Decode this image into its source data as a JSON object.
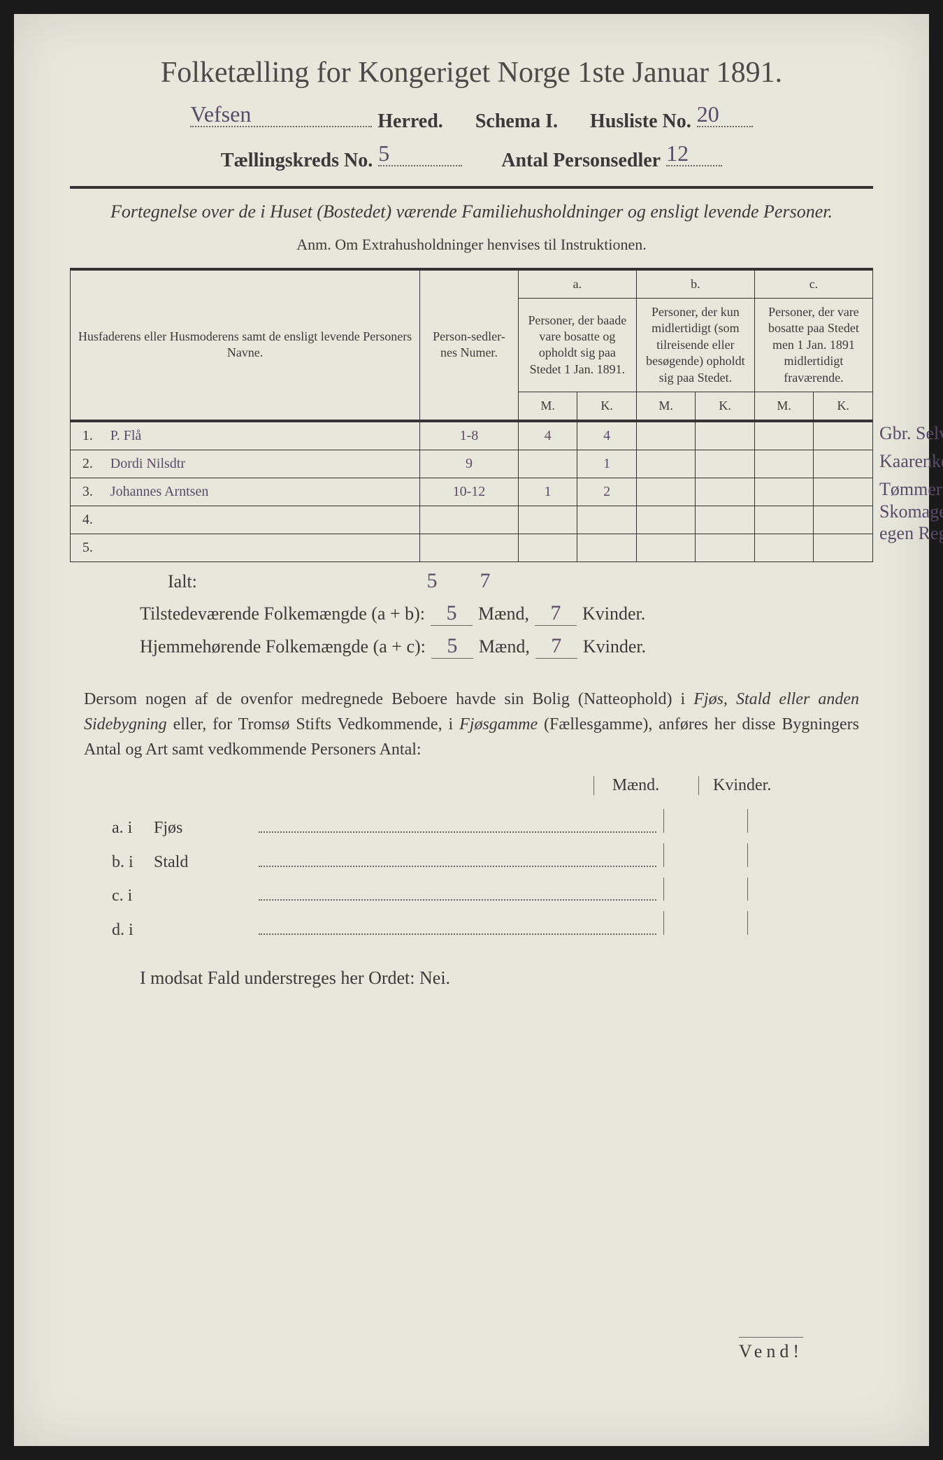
{
  "title": "Folketælling for Kongeriget Norge 1ste Januar 1891.",
  "header": {
    "herred_value": "Vefsen",
    "herred_label": "Herred.",
    "schema_label": "Schema I.",
    "husliste_label": "Husliste No.",
    "husliste_value": "20",
    "tellingskreds_label": "Tællingskreds No.",
    "tellingskreds_value": "5",
    "antal_label": "Antal Personsedler",
    "antal_value": "12"
  },
  "subtitle": "Fortegnelse over de i Huset (Bostedet) værende Familiehusholdninger og ensligt levende Personer.",
  "anm": "Anm. Om Extrahusholdninger henvises til Instruktionen.",
  "table": {
    "col_name": "Husfaderens eller Husmoderens samt de ensligt levende Personers Navne.",
    "col_num": "Person-sedler-nes Numer.",
    "col_a_head": "a.",
    "col_a": "Personer, der baade vare bosatte og opholdt sig paa Stedet 1 Jan. 1891.",
    "col_b_head": "b.",
    "col_b": "Personer, der kun midlertidigt (som tilreisende eller besøgende) opholdt sig paa Stedet.",
    "col_c_head": "c.",
    "col_c": "Personer, der vare bosatte paa Stedet men 1 Jan. 1891 midlertidigt fraværende.",
    "mk_m": "M.",
    "mk_k": "K.",
    "rows": [
      {
        "n": "1.",
        "name": "P. Flå",
        "num": "1-8",
        "am": "4",
        "ak": "4",
        "bm": "",
        "bk": "",
        "cm": "",
        "ck": "",
        "note": "Gbr. Selv."
      },
      {
        "n": "2.",
        "name": "Dordi Nilsdtr",
        "num": "9",
        "am": "",
        "ak": "1",
        "bm": "",
        "bk": "",
        "cm": "",
        "ck": "",
        "note": "Kaarenke"
      },
      {
        "n": "3.",
        "name": "Johannes Arntsen",
        "num": "10-12",
        "am": "1",
        "ak": "2",
        "bm": "",
        "bk": "",
        "cm": "",
        "ck": "",
        "note": "Tømmermd. og Skomager for egen Regn."
      },
      {
        "n": "4.",
        "name": "",
        "num": "",
        "am": "",
        "ak": "",
        "bm": "",
        "bk": "",
        "cm": "",
        "ck": "",
        "note": ""
      },
      {
        "n": "5.",
        "name": "",
        "num": "",
        "am": "",
        "ak": "",
        "bm": "",
        "bk": "",
        "cm": "",
        "ck": "",
        "note": ""
      }
    ],
    "ialt_label": "Ialt:",
    "ialt_m": "5",
    "ialt_k": "7"
  },
  "calc": {
    "line1_label": "Tilstedeværende Folkemængde (a + b):",
    "line1_m": "5",
    "line1_k": "7",
    "line2_label": "Hjemmehørende Folkemængde (a + c):",
    "line2_m": "5",
    "line2_k": "7",
    "maend": "Mænd,",
    "kvinder": "Kvinder."
  },
  "para": {
    "text1": "Dersom nogen af de ovenfor medregnede Beboere havde sin Bolig (Natteophold) i ",
    "em1": "Fjøs, Stald eller anden Sidebygning",
    "text2": " eller, for Tromsø Stifts Vedkommende, i ",
    "em2": "Fjøsgamme",
    "text3": " (Fællesgamme), anføres her disse Bygningers Antal og Art samt vedkommende Personers Antal:"
  },
  "subheader_m": "Mænd.",
  "subheader_k": "Kvinder.",
  "subrows": [
    {
      "label": "a.  i",
      "name": "Fjøs"
    },
    {
      "label": "b.  i",
      "name": "Stald"
    },
    {
      "label": "c.  i",
      "name": ""
    },
    {
      "label": "d.  i",
      "name": ""
    }
  ],
  "closing": "I modsat Fald understreges her Ordet: Nei.",
  "vend": "Vend!"
}
